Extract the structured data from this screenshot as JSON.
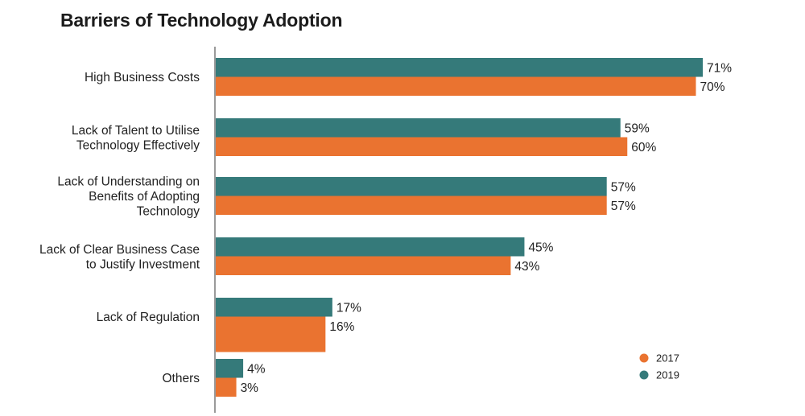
{
  "chart_data": {
    "type": "bar",
    "orientation": "horizontal",
    "title": "Barriers of Technology Adoption",
    "xlabel": "",
    "ylabel": "",
    "xlim": [
      0,
      100
    ],
    "grid": false,
    "legend_position": "bottom-right",
    "categories": [
      [
        "High Business Costs"
      ],
      [
        "Lack of Talent to Utilise",
        "Technology Effectively"
      ],
      [
        "Lack of Understanding on",
        "Benefits of Adopting",
        "Technology"
      ],
      [
        "Lack of Clear Business Case",
        "to Justify Investment"
      ],
      [
        "Lack of Regulation"
      ],
      [
        "Others"
      ]
    ],
    "series": [
      {
        "name": "2019",
        "color": "#357a7a",
        "values": [
          71,
          59,
          57,
          45,
          17,
          4
        ],
        "labels": [
          "71%",
          "59%",
          "57%",
          "45%",
          "17%",
          "4%"
        ]
      },
      {
        "name": "2017",
        "color": "#ea7330",
        "values": [
          70,
          60,
          57,
          43,
          16,
          3
        ],
        "labels": [
          "70%",
          "60%",
          "57%",
          "43%",
          "16%",
          "3%"
        ]
      }
    ],
    "legend": [
      {
        "name": "2017",
        "color": "#ea7330"
      },
      {
        "name": "2019",
        "color": "#357a7a"
      }
    ],
    "axis_color": "#9a9a9a"
  }
}
